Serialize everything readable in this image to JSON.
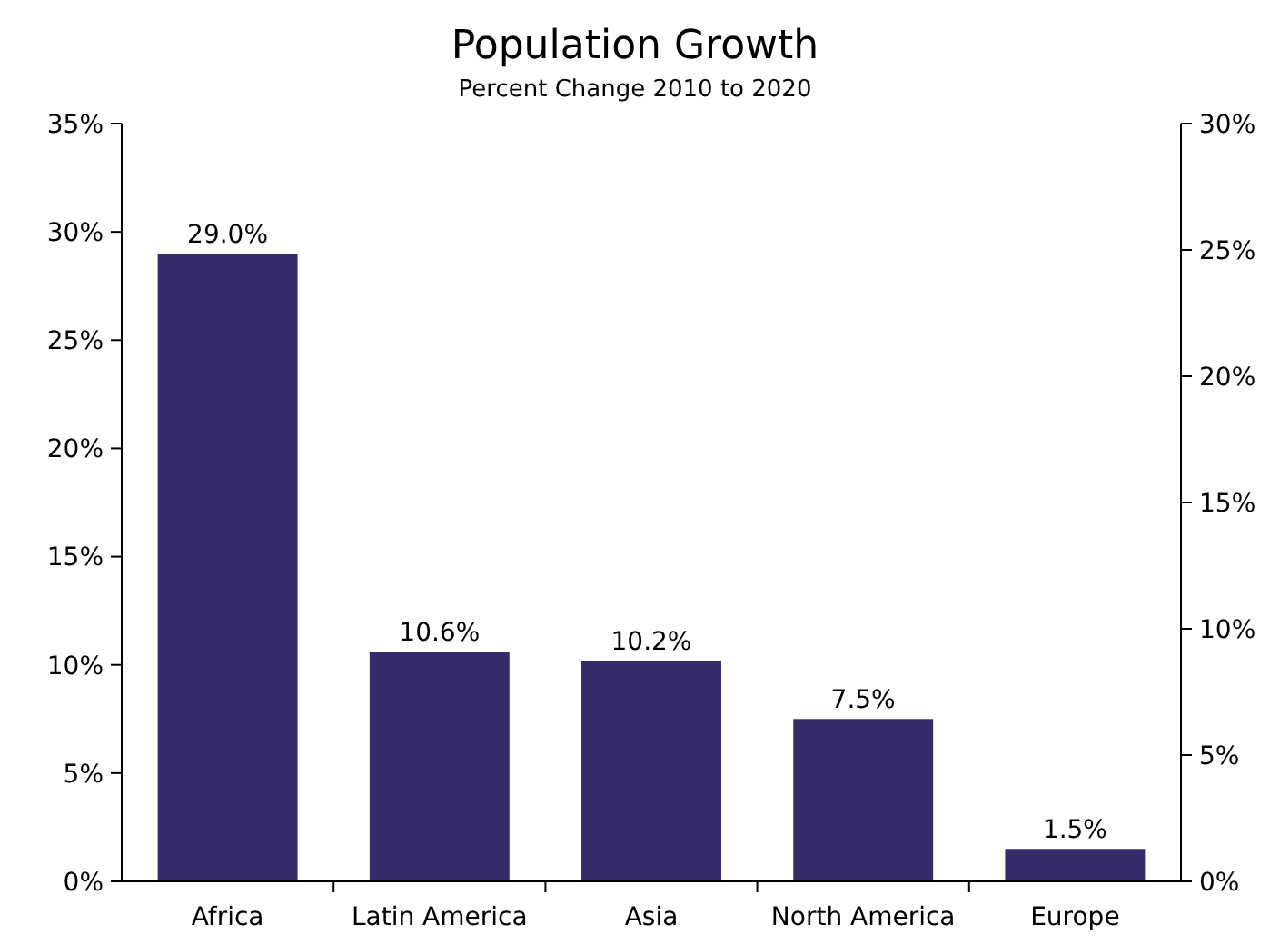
{
  "chart_data": {
    "type": "bar",
    "title": "Population Growth",
    "subtitle": "Percent Change 2010 to 2020",
    "categories": [
      "Africa",
      "Latin America",
      "Asia",
      "North America",
      "Europe"
    ],
    "values": [
      29.0,
      10.6,
      10.2,
      7.5,
      1.5
    ],
    "value_labels": [
      "29.0%",
      "10.6%",
      "10.2%",
      "7.5%",
      "1.5%"
    ],
    "color": "#362a68",
    "ylim": [
      0,
      35
    ],
    "yticks": [
      {
        "value": 0,
        "label": "0%"
      },
      {
        "value": 5,
        "label": "5%"
      },
      {
        "value": 10,
        "label": "10%"
      },
      {
        "value": 15,
        "label": "15%"
      },
      {
        "value": 20,
        "label": "20%"
      },
      {
        "value": 25,
        "label": "25%"
      },
      {
        "value": 30,
        "label": "30%"
      },
      {
        "value": 35,
        "label": "35%"
      }
    ],
    "y2lim": [
      0,
      30
    ],
    "y2ticks": [
      {
        "value": 0,
        "label": "0%"
      },
      {
        "value": 5,
        "label": "5%"
      },
      {
        "value": 10,
        "label": "10%"
      },
      {
        "value": 15,
        "label": "15%"
      },
      {
        "value": 20,
        "label": "20%"
      },
      {
        "value": 25,
        "label": "25%"
      },
      {
        "value": 30,
        "label": "30%"
      }
    ],
    "grid": false
  }
}
